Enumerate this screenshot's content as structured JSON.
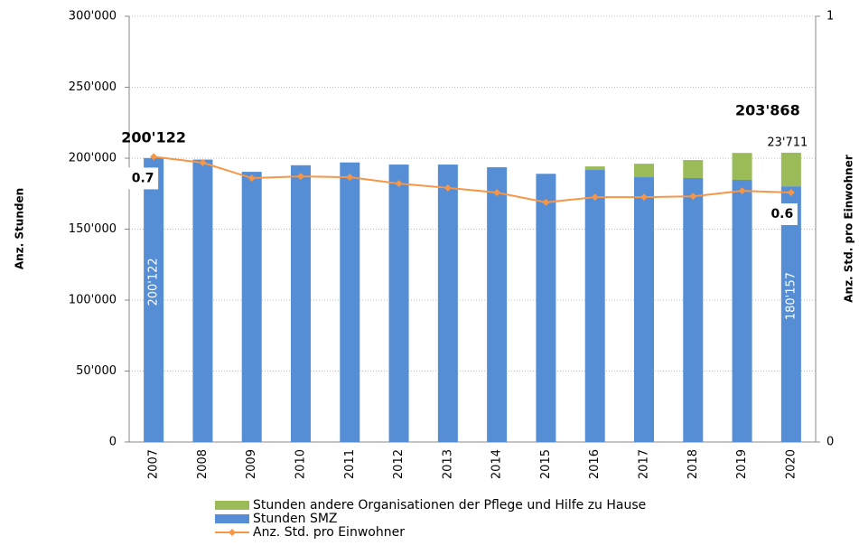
{
  "chart_data": {
    "type": "bar",
    "stacked": true,
    "y_label": "Anz. Stunden",
    "y2_label": "Anz. Std. pro Einwohner",
    "categories": [
      "2007",
      "2008",
      "2009",
      "2010",
      "2011",
      "2012",
      "2013",
      "2014",
      "2015",
      "2016",
      "2017",
      "2018",
      "2019",
      "2020"
    ],
    "series": [
      {
        "name": "Stunden SMZ",
        "type": "bar",
        "color": "#558ed5",
        "values": [
          200122,
          199000,
          190400,
          195000,
          197000,
          195500,
          195500,
          193600,
          189000,
          191700,
          186600,
          186000,
          184700,
          180157
        ],
        "value_labels": [
          "200'122",
          null,
          null,
          null,
          null,
          null,
          null,
          null,
          null,
          null,
          null,
          null,
          null,
          "180'157"
        ]
      },
      {
        "name": "Stunden andere Organisationen der Pflege und Hilfe zu Hause",
        "type": "bar",
        "color": "#9bbb59",
        "values": [
          0,
          0,
          0,
          0,
          0,
          0,
          0,
          0,
          0,
          2500,
          9500,
          12700,
          19000,
          23711
        ],
        "value_labels": [
          null,
          null,
          null,
          null,
          null,
          null,
          null,
          null,
          null,
          null,
          null,
          null,
          null,
          "23'711"
        ]
      },
      {
        "name": "Anz. Std. pro Einwohner",
        "type": "line",
        "axis": "y2",
        "color": "#f79646",
        "values": [
          0.67,
          0.656,
          0.62,
          0.624,
          0.622,
          0.607,
          0.597,
          0.586,
          0.563,
          0.575,
          0.575,
          0.577,
          0.59,
          0.586
        ],
        "value_labels": [
          "0.7",
          null,
          null,
          null,
          null,
          null,
          null,
          null,
          null,
          null,
          null,
          null,
          null,
          "0.6"
        ]
      }
    ],
    "totals": [
      200122,
      null,
      null,
      null,
      null,
      null,
      null,
      null,
      null,
      null,
      null,
      null,
      null,
      203868
    ],
    "totals_labels": [
      "200'122",
      null,
      null,
      null,
      null,
      null,
      null,
      null,
      null,
      null,
      null,
      null,
      null,
      "203'868"
    ],
    "ylim": [
      0,
      300000
    ],
    "yticks": [
      0,
      {
        "value": 50000,
        "label": "50'000"
      },
      {
        "value": 100000,
        "label": "100'000"
      },
      {
        "value": 150000,
        "label": "150'000"
      },
      {
        "value": 200000,
        "label": "200'000"
      },
      {
        "value": 250000,
        "label": "250'000"
      },
      {
        "value": 300000,
        "label": "300'000"
      }
    ],
    "y2lim": [
      0,
      1
    ],
    "y2ticks": [
      0,
      1
    ],
    "grid": true,
    "legend": "bottom"
  }
}
